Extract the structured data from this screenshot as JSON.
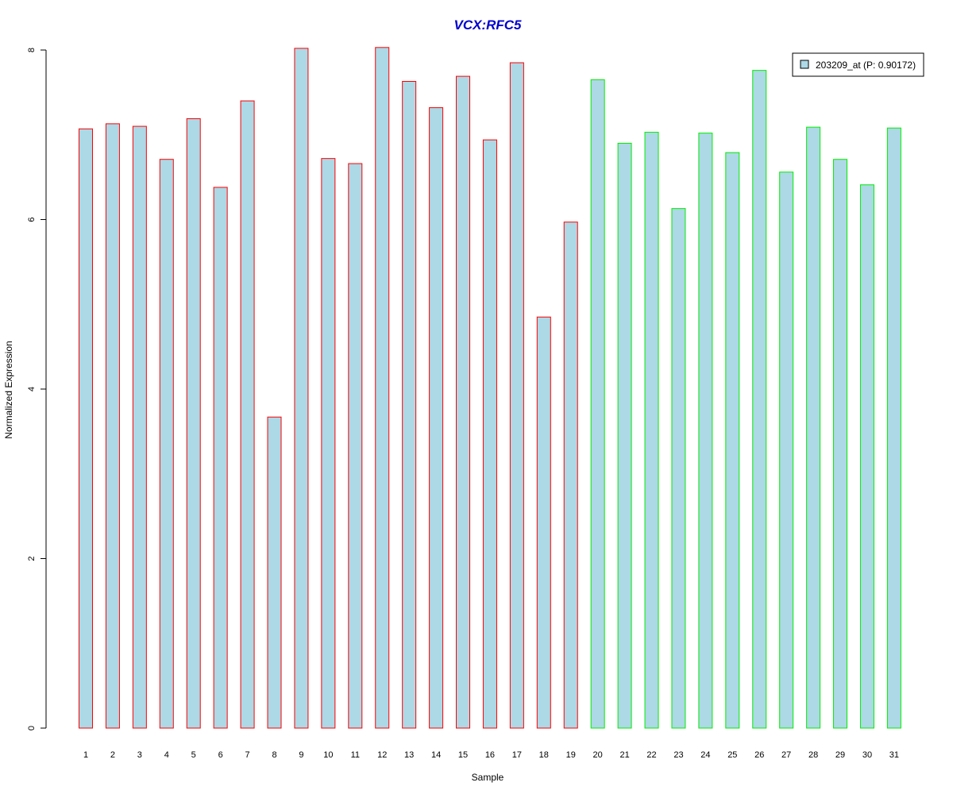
{
  "chart_data": {
    "type": "bar",
    "title": "VCX:RFC5",
    "xlabel": "Sample",
    "ylabel": "Normalized Expression",
    "ylim": [
      0,
      8
    ],
    "y_ticks": [
      "0",
      "2",
      "4",
      "6",
      "8"
    ],
    "categories": [
      "1",
      "2",
      "3",
      "4",
      "5",
      "6",
      "7",
      "8",
      "9",
      "10",
      "11",
      "12",
      "13",
      "14",
      "15",
      "16",
      "17",
      "18",
      "19",
      "20",
      "21",
      "22",
      "23",
      "24",
      "25",
      "26",
      "27",
      "28",
      "29",
      "30",
      "31"
    ],
    "series": [
      {
        "name": "203209_at (P: 0.90172)",
        "values": [
          7.07,
          7.13,
          7.1,
          6.71,
          7.19,
          6.38,
          7.4,
          3.67,
          8.02,
          6.72,
          6.66,
          8.03,
          7.63,
          7.32,
          7.69,
          6.94,
          7.85,
          4.85,
          5.97,
          7.65,
          6.9,
          7.03,
          6.13,
          7.02,
          6.79,
          7.76,
          6.56,
          7.09,
          6.71,
          6.41,
          7.08
        ]
      }
    ],
    "group_count_first": 19,
    "colors": {
      "title": "#0000cc",
      "fill": "#add8e6",
      "border_group1": "#ff0000",
      "border_group2": "#00ee00",
      "axis": "#000000"
    },
    "legend": {
      "label": "203209_at (P: 0.90172)",
      "position": "top-right"
    },
    "grid": false
  }
}
